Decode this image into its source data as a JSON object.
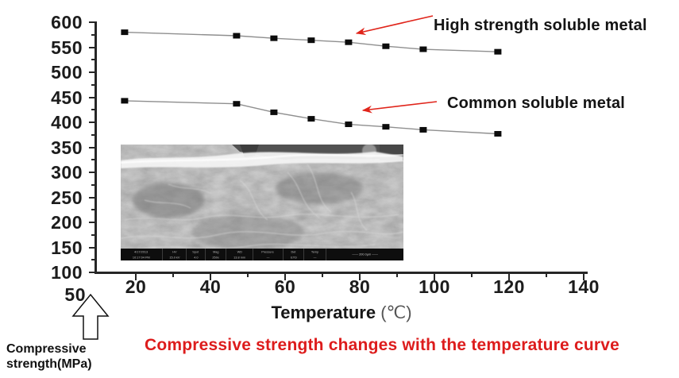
{
  "figure": {
    "caption": "Compressive strength changes with the temperature curve",
    "caption_color": "#dd1c1c"
  },
  "chart": {
    "x_axis": {
      "title": "Temperature",
      "unit": "(℃)",
      "major_ticks": [
        20,
        40,
        60,
        80,
        100,
        120,
        140
      ]
    },
    "y_axis": {
      "major_ticks": [
        600,
        550,
        500,
        450,
        400,
        350,
        300,
        250,
        200,
        150,
        100
      ],
      "below_axis_label": "50",
      "title_lines": [
        "Compressive",
        "strength(MPa)"
      ]
    },
    "annotations": {
      "high_label": "High strength soluble metal",
      "common_label": "Common soluble metal"
    },
    "colors": {
      "annotation_red": "#e0241a",
      "series_line": "#8f8f8f",
      "marker": "#0c0c0c",
      "axis": "#262626"
    }
  },
  "chart_data": {
    "type": "line",
    "x": [
      17,
      47,
      57,
      67,
      77,
      87,
      97,
      117
    ],
    "series": [
      {
        "name": "High strength soluble metal",
        "values": [
          580,
          573,
          568,
          564,
          560,
          552,
          546,
          541
        ]
      },
      {
        "name": "Common soluble metal",
        "values": [
          443,
          437,
          420,
          407,
          396,
          391,
          385,
          377
        ]
      }
    ],
    "title": "Compressive strength changes with the temperature curve",
    "xlabel": "Temperature (℃)",
    "ylabel": "Compressive strength(MPa)",
    "xlim": [
      10,
      140
    ],
    "ylim": [
      50,
      600
    ],
    "grid": false,
    "legend_position": "inline-arrow-annotations",
    "marker": "black-square"
  },
  "sem_image": {
    "info_bar": {
      "columns": [
        {
          "label": "4/17/2013",
          "value": "10:17:04 PM"
        },
        {
          "label": "HV",
          "value": "15.0 kV"
        },
        {
          "label": "Spot",
          "value": "4.0"
        },
        {
          "label": "Mag",
          "value": "250x"
        },
        {
          "label": "WD",
          "value": "13.8 mm"
        },
        {
          "label": "Pressure",
          "value": "—"
        },
        {
          "label": "Det",
          "value": "ETD"
        },
        {
          "label": "Temp",
          "value": "—"
        }
      ],
      "scale_label": "—— 200.0µm ——"
    }
  }
}
